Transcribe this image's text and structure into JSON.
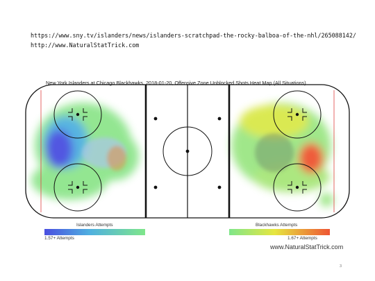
{
  "header": {
    "url_line1": "https://www.sny.tv/islanders/news/islanders-scratchpad-the-rocky-balboa-of-the-nhl/265088142/",
    "url_line2": "http://www.NaturalStatTrick.com"
  },
  "chart": {
    "title": "New York Islanders at Chicago Blackhawks, 2018-01-20, Offensive Zone Unblocked Shots Heat Map (All Situations)",
    "left_team_label": "Islanders Attempts",
    "left_scale_label": "1.57+ Attempts",
    "right_team_label": "Blackhawks Attempts",
    "right_scale_label": "1.67+ Attempts",
    "brand": "www.NaturalStatTrick.com"
  },
  "colors": {
    "islanders_hot": "#4a4fe0",
    "blackhawks_hot": "#ee5533",
    "cool": "#7fe68a",
    "rink_line": "#111111",
    "center_line": "#111111"
  },
  "page_number": "3"
}
